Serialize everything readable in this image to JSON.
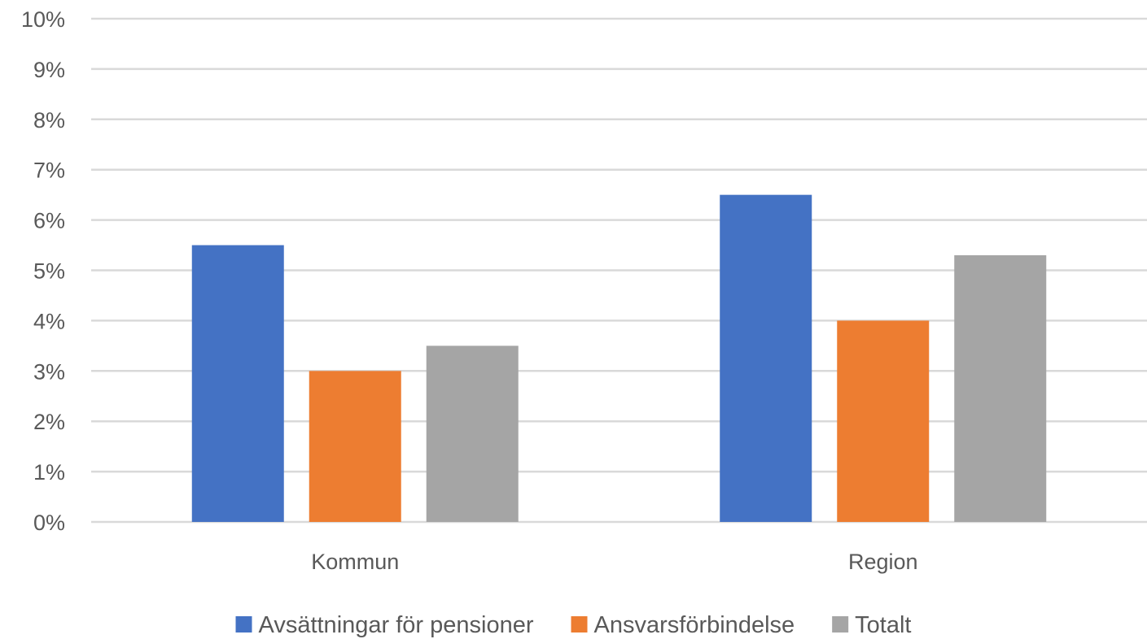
{
  "chart_data": {
    "type": "bar",
    "title": "",
    "xlabel": "",
    "ylabel": "",
    "categories": [
      "Kommun",
      "Region"
    ],
    "series": [
      {
        "name": "Avsättningar för pensioner",
        "values": [
          5.5,
          6.5
        ],
        "color": "#4472C4"
      },
      {
        "name": "Ansvarsförbindelse",
        "values": [
          3.0,
          4.0
        ],
        "color": "#ED7D31"
      },
      {
        "name": "Totalt",
        "values": [
          3.5,
          5.3
        ],
        "color": "#A5A5A5"
      }
    ],
    "ylim": [
      0,
      10
    ],
    "y_ticks": [
      "0%",
      "1%",
      "2%",
      "3%",
      "4%",
      "5%",
      "6%",
      "7%",
      "8%",
      "9%",
      "10%"
    ],
    "y_unit": "%",
    "grid": true,
    "gridline_color": "#D9D9D9",
    "legend_position": "bottom"
  }
}
